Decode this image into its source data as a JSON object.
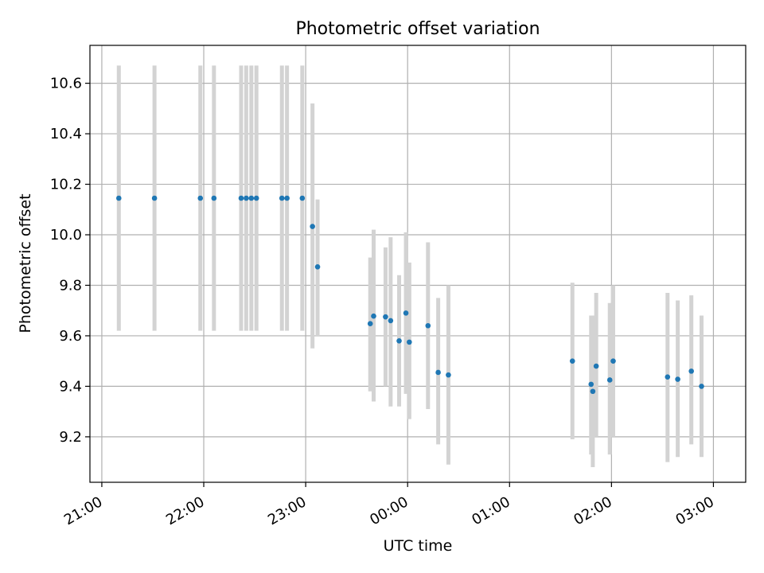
{
  "chart_data": {
    "type": "scatter",
    "title": "Photometric offset variation",
    "xlabel": "UTC time",
    "ylabel": "Photometric offset",
    "x_axis_kind": "time",
    "xlim": [
      "20:53",
      "03:19"
    ],
    "ylim": [
      9.02,
      10.75
    ],
    "x_ticks": [
      "21:00",
      "22:00",
      "23:00",
      "00:00",
      "01:00",
      "02:00",
      "03:00"
    ],
    "y_ticks": [
      9.2,
      9.4,
      9.6,
      9.8,
      10.0,
      10.2,
      10.4,
      10.6
    ],
    "grid": true,
    "point_color": "#1f77b4",
    "errorbar_color": "#d3d3d3",
    "series": [
      {
        "points": [
          {
            "t": "21:10",
            "y": 10.145,
            "lo": 9.62,
            "hi": 10.67
          },
          {
            "t": "21:31",
            "y": 10.145,
            "lo": 9.62,
            "hi": 10.67
          },
          {
            "t": "21:58",
            "y": 10.145,
            "lo": 9.62,
            "hi": 10.67
          },
          {
            "t": "22:06",
            "y": 10.145,
            "lo": 9.62,
            "hi": 10.67
          },
          {
            "t": "22:22",
            "y": 10.145,
            "lo": 9.62,
            "hi": 10.67
          },
          {
            "t": "22:25",
            "y": 10.145,
            "lo": 9.62,
            "hi": 10.67
          },
          {
            "t": "22:28",
            "y": 10.145,
            "lo": 9.62,
            "hi": 10.67
          },
          {
            "t": "22:31",
            "y": 10.145,
            "lo": 9.62,
            "hi": 10.67
          },
          {
            "t": "22:46",
            "y": 10.145,
            "lo": 9.62,
            "hi": 10.67
          },
          {
            "t": "22:49",
            "y": 10.145,
            "lo": 9.62,
            "hi": 10.67
          },
          {
            "t": "22:58",
            "y": 10.145,
            "lo": 9.62,
            "hi": 10.67
          },
          {
            "t": "23:04",
            "y": 10.033,
            "lo": 9.55,
            "hi": 10.52
          },
          {
            "t": "23:07",
            "y": 9.873,
            "lo": 9.6,
            "hi": 10.14
          },
          {
            "t": "23:38",
            "y": 9.648,
            "lo": 9.38,
            "hi": 9.91
          },
          {
            "t": "23:40",
            "y": 9.678,
            "lo": 9.34,
            "hi": 10.02
          },
          {
            "t": "23:47",
            "y": 9.675,
            "lo": 9.4,
            "hi": 9.95
          },
          {
            "t": "23:50",
            "y": 9.66,
            "lo": 9.32,
            "hi": 9.99
          },
          {
            "t": "23:55",
            "y": 9.58,
            "lo": 9.32,
            "hi": 9.84
          },
          {
            "t": "23:59",
            "y": 9.69,
            "lo": 9.37,
            "hi": 10.01
          },
          {
            "t": "00:01",
            "y": 9.575,
            "lo": 9.27,
            "hi": 9.89
          },
          {
            "t": "00:12",
            "y": 9.64,
            "lo": 9.31,
            "hi": 9.97
          },
          {
            "t": "00:18",
            "y": 9.455,
            "lo": 9.17,
            "hi": 9.75
          },
          {
            "t": "00:24",
            "y": 9.445,
            "lo": 9.09,
            "hi": 9.8
          },
          {
            "t": "01:37",
            "y": 9.5,
            "lo": 9.19,
            "hi": 9.81
          },
          {
            "t": "01:48",
            "y": 9.408,
            "lo": 9.13,
            "hi": 9.68
          },
          {
            "t": "01:49",
            "y": 9.38,
            "lo": 9.08,
            "hi": 9.68
          },
          {
            "t": "01:51",
            "y": 9.48,
            "lo": 9.2,
            "hi": 9.77
          },
          {
            "t": "01:59",
            "y": 9.425,
            "lo": 9.13,
            "hi": 9.73
          },
          {
            "t": "02:01",
            "y": 9.5,
            "lo": 9.2,
            "hi": 9.8
          },
          {
            "t": "02:33",
            "y": 9.437,
            "lo": 9.1,
            "hi": 9.77
          },
          {
            "t": "02:39",
            "y": 9.428,
            "lo": 9.12,
            "hi": 9.74
          },
          {
            "t": "02:47",
            "y": 9.46,
            "lo": 9.17,
            "hi": 9.76
          },
          {
            "t": "02:53",
            "y": 9.4,
            "lo": 9.12,
            "hi": 9.68
          }
        ]
      }
    ]
  }
}
